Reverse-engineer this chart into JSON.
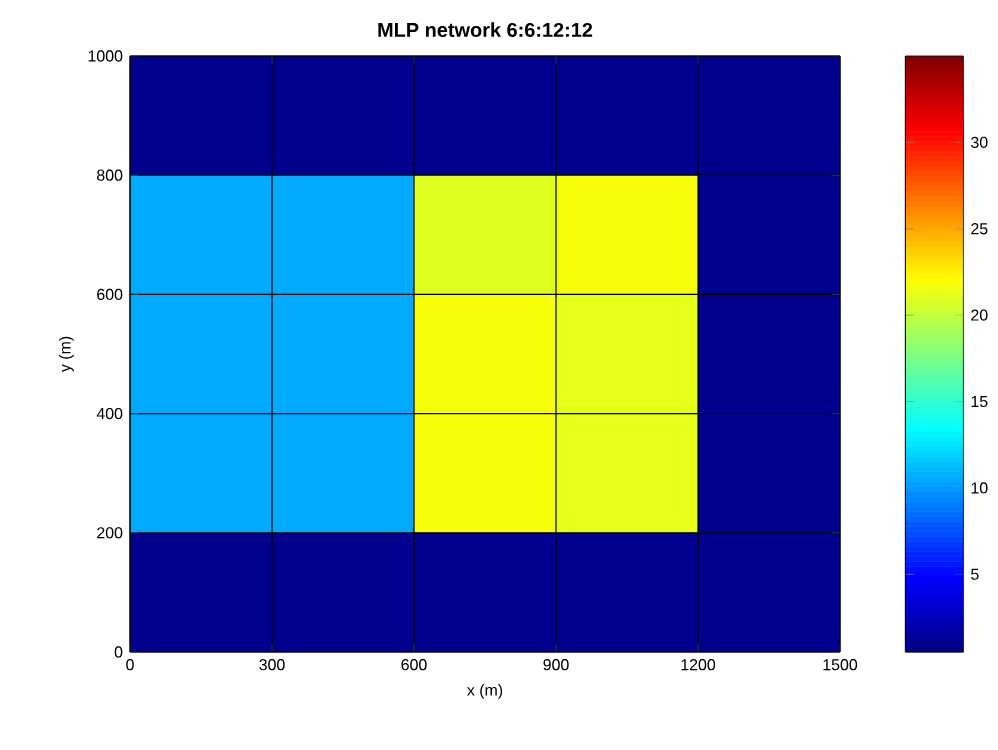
{
  "chart_data": {
    "type": "heatmap",
    "title": "MLP network 6:6:12:12",
    "xlabel": "x (m)",
    "ylabel": "y (m)",
    "cells": [
      [
        1,
        1,
        1,
        1,
        1
      ],
      [
        10.6,
        10.6,
        21.0,
        21.8,
        1
      ],
      [
        10.6,
        10.6,
        21.8,
        21.2,
        1
      ],
      [
        10.6,
        10.6,
        21.8,
        21.2,
        1
      ],
      [
        1,
        1,
        1,
        1,
        1
      ]
    ],
    "xlim": [
      0,
      1500
    ],
    "ylim": [
      0,
      1000
    ],
    "xticks": [
      0,
      300,
      600,
      900,
      1200,
      1500
    ],
    "yticks": [
      0,
      200,
      400,
      600,
      800,
      1000
    ],
    "clim": [
      0.5,
      35
    ],
    "cticks": [
      5,
      10,
      15,
      20,
      25,
      30
    ],
    "grid": true
  }
}
